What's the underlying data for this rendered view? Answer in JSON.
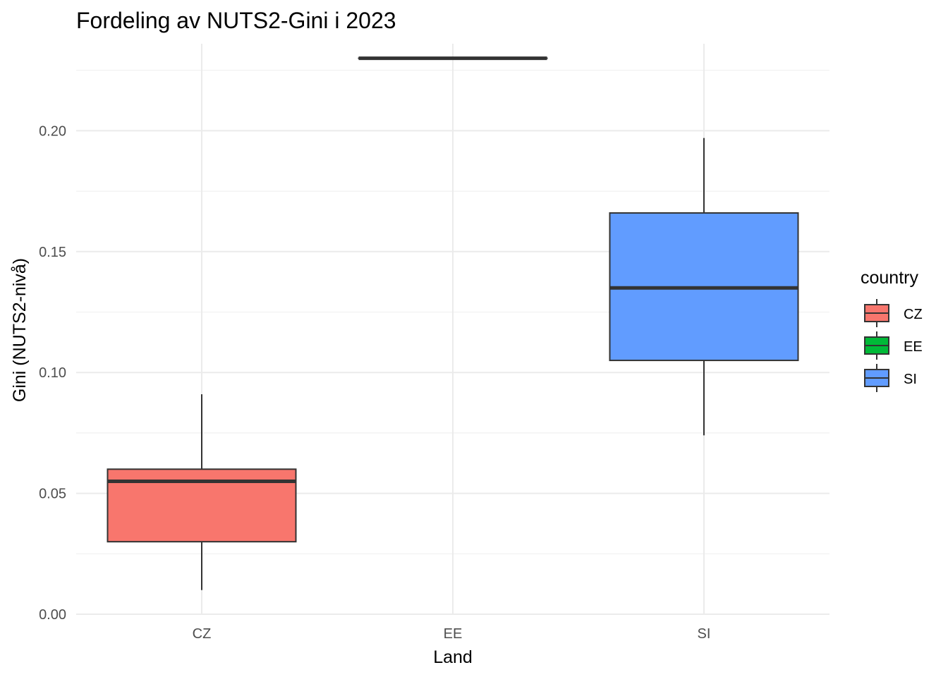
{
  "chart_data": {
    "type": "boxplot",
    "title": "Fordeling av NUTS2-Gini i 2023",
    "xlabel": "Land",
    "ylabel": "Gini (NUTS2-nivå)",
    "ylim": [
      0,
      0.236
    ],
    "yticks": [
      0.0,
      0.05,
      0.1,
      0.15,
      0.2
    ],
    "ytick_labels": [
      "0.00",
      "0.05",
      "0.10",
      "0.15",
      "0.20"
    ],
    "categories": [
      "CZ",
      "EE",
      "SI"
    ],
    "legend": {
      "title": "country",
      "entries": [
        "CZ",
        "EE",
        "SI"
      ],
      "placement": "right"
    },
    "series": [
      {
        "name": "CZ",
        "color": "#F8766D",
        "min": 0.01,
        "q1": 0.03,
        "median": 0.055,
        "q3": 0.06,
        "max": 0.091
      },
      {
        "name": "EE",
        "color": "#00BA38",
        "min": 0.23,
        "q1": 0.23,
        "median": 0.23,
        "q3": 0.23,
        "max": 0.23
      },
      {
        "name": "SI",
        "color": "#619CFF",
        "min": 0.074,
        "q1": 0.105,
        "median": 0.135,
        "q3": 0.166,
        "max": 0.197
      }
    ],
    "grid": true
  }
}
